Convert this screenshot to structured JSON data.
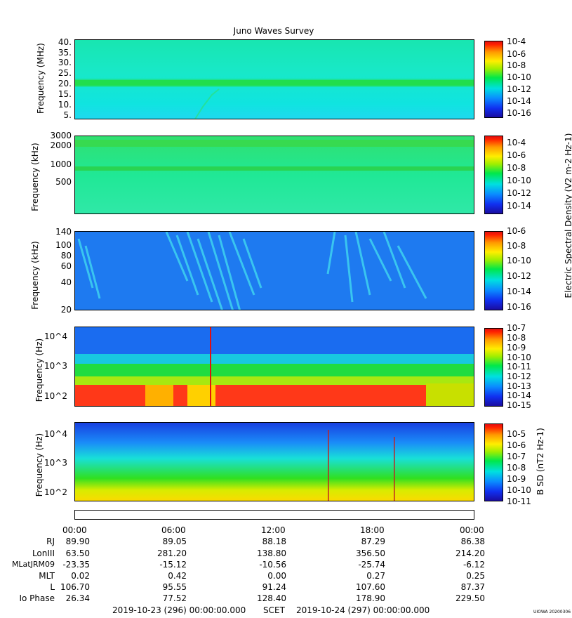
{
  "title": "Juno Waves Survey",
  "panels": [
    {
      "ylabel": "Frequency (MHz)",
      "yticks": [
        "40.",
        "35.",
        "30.",
        "25.",
        "20.",
        "15.",
        "10.",
        "5."
      ],
      "cbar_ticks": [
        "10-4",
        "10-6",
        "10-8",
        "10-10",
        "10-12",
        "10-14",
        "10-16"
      ]
    },
    {
      "ylabel": "Frequency (kHz)",
      "yticks": [
        "3000",
        "2000",
        "1000",
        "500"
      ],
      "cbar_ticks": [
        "10-4",
        "10-6",
        "10-8",
        "10-10",
        "10-12",
        "10-14"
      ]
    },
    {
      "ylabel": "Frequency (kHz)",
      "yticks": [
        "140",
        "100",
        "80",
        "60",
        "40",
        "20"
      ],
      "cbar_ticks": [
        "10-6",
        "10-8",
        "10-10",
        "10-12",
        "10-14",
        "10-16"
      ]
    },
    {
      "ylabel": "Frequency (Hz)",
      "yticks": [
        "10^4",
        "10^3",
        "10^2"
      ],
      "cbar_ticks": [
        "10-7",
        "10-8",
        "10-9",
        "10-10",
        "10-11",
        "10-12",
        "10-13",
        "10-14",
        "10-15"
      ]
    },
    {
      "ylabel": "Frequency (Hz)",
      "yticks": [
        "10^4",
        "10^3",
        "10^2"
      ],
      "cbar_ticks": [
        "10-5",
        "10-6",
        "10-7",
        "10-8",
        "10-9",
        "10-10",
        "10-11"
      ]
    }
  ],
  "colorbar_labels": {
    "electric": "Electric Spectral Density (V2 m-2 Hz-1)",
    "magnetic": "B SD (nT2 Hz-1)"
  },
  "time_ticks": [
    "00:00",
    "06:00",
    "12:00",
    "18:00",
    "00:00"
  ],
  "ephemeris": [
    {
      "label": "RJ",
      "values": [
        "89.90",
        "89.05",
        "88.18",
        "87.29",
        "86.38"
      ]
    },
    {
      "label": "LonIII",
      "values": [
        "63.50",
        "281.20",
        "138.80",
        "356.50",
        "214.20"
      ]
    },
    {
      "label": "MLatJRM09",
      "values": [
        "-23.35",
        "-15.12",
        "-10.56",
        "-25.74",
        "-6.12"
      ]
    },
    {
      "label": "MLT",
      "values": [
        "0.02",
        "0.42",
        "0.00",
        "0.27",
        "0.25"
      ]
    },
    {
      "label": "L",
      "values": [
        "106.70",
        "95.55",
        "91.24",
        "107.60",
        "87.37"
      ]
    },
    {
      "label": "Io Phase",
      "values": [
        "26.34",
        "77.52",
        "128.40",
        "178.90",
        "229.50"
      ]
    }
  ],
  "footer": {
    "start": "2019-10-23 (296) 00:00:00.000",
    "scet": "SCET",
    "end": "2019-10-24 (297) 00:00:00.000",
    "stamp": "UIOWA 20200306"
  }
}
